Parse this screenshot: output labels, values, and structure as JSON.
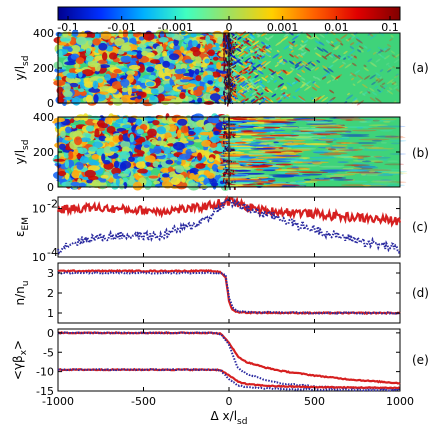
{
  "colorbar": {
    "tick_labels": [
      "-0.1",
      "-0.01",
      "-0.001",
      "0",
      "0.001",
      "0.01",
      "0.1"
    ],
    "colors": [
      "#00008f",
      "#0030ff",
      "#00b0ff",
      "#40ffc0",
      "#a0e060",
      "#ffd000",
      "#ff6000",
      "#e00000",
      "#800000"
    ]
  },
  "panel_labels": [
    "(a)",
    "(b)",
    "(c)",
    "(d)",
    "(e)"
  ],
  "x_axis": {
    "label": "Δ x/l",
    "label_sub": "sd",
    "range": [
      -1000,
      1000
    ],
    "tick_labels": [
      "-1000",
      "-500",
      "0",
      "500",
      "1000"
    ]
  },
  "panel_a": {
    "ylabel": "y/l",
    "ylabel_sub": "sd",
    "ylim": [
      0,
      400
    ],
    "tick_labels": [
      "0",
      "200",
      "400"
    ]
  },
  "panel_b": {
    "ylabel": "y/l",
    "ylabel_sub": "sd",
    "ylim": [
      0,
      400
    ],
    "tick_labels": [
      "0",
      "200",
      "400"
    ]
  },
  "panel_c": {
    "ylabel": "ε",
    "ylabel_sub": "EM",
    "scale": "log",
    "ylim": [
      0.0001,
      0.03
    ],
    "tick_base": "10",
    "tick_exps": [
      "-2",
      "-4"
    ]
  },
  "panel_d": {
    "ylabel": "n/n",
    "ylabel_sub": "u",
    "ylim": [
      0.5,
      3.5
    ],
    "tick_labels": [
      "1",
      "2",
      "3"
    ]
  },
  "panel_e": {
    "ylabel": "<γβ",
    "ylabel_sub": "x",
    "ylabel_end": ">",
    "ylim": [
      -15,
      1
    ],
    "tick_labels": [
      "0",
      "-5",
      "-10",
      "-15"
    ]
  },
  "chart_data": [
    {
      "type": "heatmap",
      "panel": "a",
      "note": "field map, turbulent left of x=0, striated right of x=0",
      "color_scale": "symmetric log, -0.1 to 0.1"
    },
    {
      "type": "heatmap",
      "panel": "b",
      "note": "field map, turbulent left of x=0, filamentary right of x=0",
      "color_scale": "symmetric log, -0.1 to 0.1"
    },
    {
      "type": "line",
      "panel": "c",
      "x": [
        -1000,
        -800,
        -600,
        -400,
        -200,
        -100,
        0,
        100,
        200,
        400,
        600,
        800,
        1000
      ],
      "series": [
        {
          "color": "#d62020",
          "values": [
            0.009,
            0.011,
            0.009,
            0.008,
            0.01,
            0.014,
            0.02,
            0.012,
            0.008,
            0.007,
            0.005,
            0.004,
            0.003
          ]
        },
        {
          "color": "#2a2aa0",
          "values": [
            0.0002,
            0.0006,
            0.0008,
            0.0007,
            0.002,
            0.005,
            0.02,
            0.01,
            0.006,
            0.002,
            0.0008,
            0.0004,
            0.0002
          ]
        }
      ]
    },
    {
      "type": "line",
      "panel": "d",
      "x": [
        -1000,
        -500,
        -100,
        -50,
        -20,
        0,
        20,
        50,
        100,
        500,
        1000
      ],
      "series": [
        {
          "color": "#d62020",
          "values": [
            3.1,
            3.1,
            3.1,
            3.05,
            2.8,
            1.6,
            1.15,
            1.05,
            1.02,
            1.0,
            1.0
          ]
        },
        {
          "color": "#2a2aa0",
          "values": [
            3.0,
            3.0,
            3.0,
            3.0,
            2.9,
            1.8,
            1.3,
            1.1,
            1.05,
            1.0,
            1.0
          ]
        }
      ]
    },
    {
      "type": "line",
      "panel": "e",
      "x": [
        -1000,
        -500,
        -100,
        -50,
        0,
        50,
        100,
        200,
        300,
        500,
        700,
        1000
      ],
      "series": [
        {
          "color": "#d62020",
          "values": [
            0,
            0,
            0,
            -0.2,
            -2.5,
            -6,
            -7.5,
            -8.8,
            -9.8,
            -11,
            -12,
            -13
          ]
        },
        {
          "color": "#2a2aa0",
          "values": [
            0,
            0,
            0,
            -0.3,
            -3,
            -9,
            -10.5,
            -12,
            -13,
            -13.8,
            -14.2,
            -14.5
          ]
        },
        {
          "color": "#d62020",
          "values": [
            -9.5,
            -9.5,
            -9.5,
            -9.6,
            -11,
            -12.5,
            -13.2,
            -13.6,
            -13.8,
            -14,
            -14.1,
            -14.2
          ]
        },
        {
          "color": "#2a2aa0",
          "values": [
            -9.5,
            -9.5,
            -9.5,
            -9.6,
            -12,
            -13.5,
            -14,
            -14.3,
            -14.5,
            -14.6,
            -14.7,
            -14.8
          ]
        }
      ]
    }
  ]
}
